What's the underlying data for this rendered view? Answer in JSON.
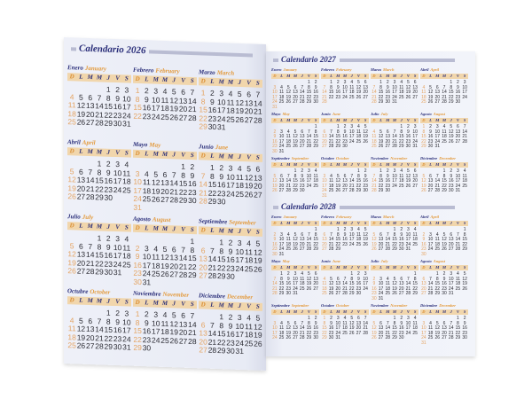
{
  "weekdays": [
    "D",
    "L",
    "M",
    "M",
    "J",
    "V",
    "S"
  ],
  "months": [
    {
      "es": "Enero",
      "en": "January"
    },
    {
      "es": "Febrero",
      "en": "February"
    },
    {
      "es": "Marzo",
      "en": "March"
    },
    {
      "es": "Abril",
      "en": "April"
    },
    {
      "es": "Mayo",
      "en": "May"
    },
    {
      "es": "Junio",
      "en": "June"
    },
    {
      "es": "Julio",
      "en": "July"
    },
    {
      "es": "Agosto",
      "en": "August"
    },
    {
      "es": "Septiembre",
      "en": "September"
    },
    {
      "es": "Octubre",
      "en": "October"
    },
    {
      "es": "Noviembre",
      "en": "November"
    },
    {
      "es": "Diciembre",
      "en": "December"
    }
  ],
  "calendars": [
    {
      "title": "Calendario 2026",
      "year": 2026
    },
    {
      "title": "Calendario 2027",
      "year": 2027
    },
    {
      "title": "Calendario 2028",
      "year": 2028
    }
  ],
  "colors": {
    "navy": "#2b2f7a",
    "orange": "#e39a3c",
    "header_bar": "#f1d6ac",
    "page": "#eceff8"
  }
}
